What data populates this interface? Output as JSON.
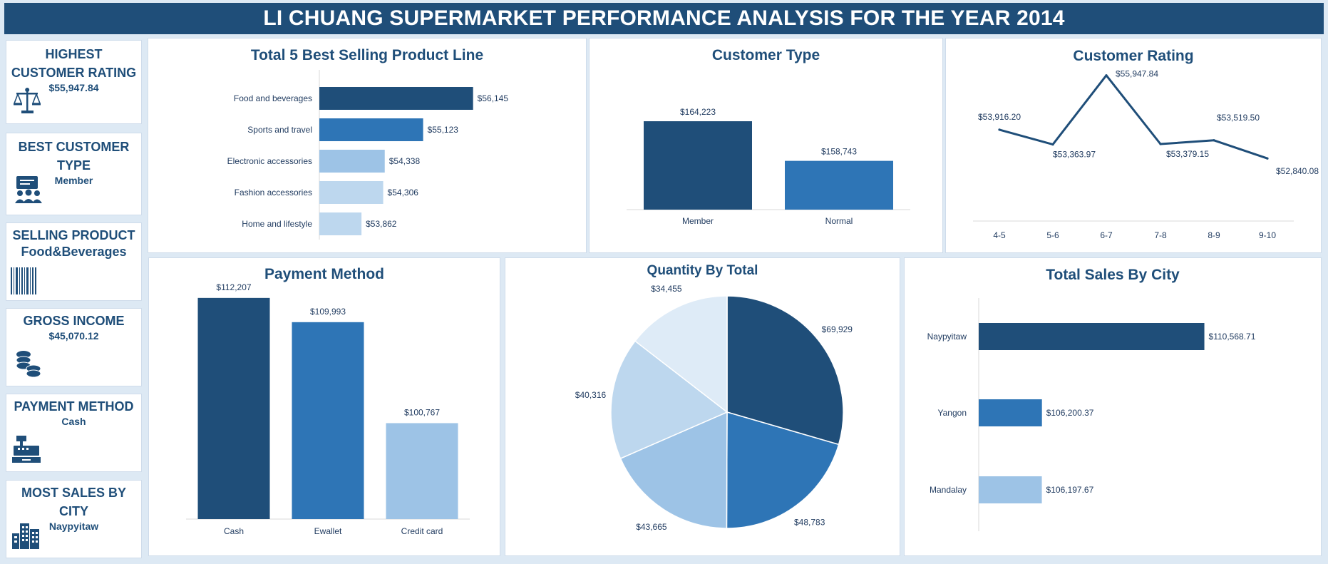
{
  "header": {
    "title": "LI CHUANG SUPERMARKET PERFORMANCE ANALYSIS FOR THE YEAR 2014"
  },
  "kpis": [
    {
      "title": "HIGHEST CUSTOMER RATING",
      "value": "$55,947.84",
      "icon": "scale-icon"
    },
    {
      "title": "BEST CUSTOMER TYPE",
      "value": "Member",
      "icon": "customers-icon"
    },
    {
      "title": "SELLING PRODUCT",
      "value": "Food&Beverages",
      "icon": "barcode-icon"
    },
    {
      "title": "GROSS INCOME",
      "value": "$45,070.12",
      "icon": "coins-icon"
    },
    {
      "title": "PAYMENT METHOD",
      "value": "Cash",
      "icon": "cash-register-icon"
    },
    {
      "title": "MOST SALES BY CITY",
      "value": "Naypyitaw",
      "icon": "city-icon"
    }
  ],
  "colors": {
    "dark": "#1f4e79",
    "medium": "#2e75b6",
    "light": "#9dc3e6",
    "lighter": "#bdd7ee",
    "lightest": "#deebf7"
  },
  "chart_data": [
    {
      "type": "bar",
      "orientation": "horizontal",
      "title": "Total 5 Best Selling Product Line",
      "categories": [
        "Food and beverages",
        "Sports and travel",
        "Electronic accessories",
        "Fashion accessories",
        "Home and lifestyle"
      ],
      "values": [
        56145,
        55123,
        54338,
        54306,
        53862
      ],
      "labels": [
        "$56,145",
        "$55,123",
        "$54,338",
        "$54,306",
        "$53,862"
      ],
      "xlim": [
        53000,
        56500
      ]
    },
    {
      "type": "bar",
      "title": "Customer Type",
      "categories": [
        "Member",
        "Normal"
      ],
      "values": [
        164223,
        158743
      ],
      "labels": [
        "$164,223",
        "$158,743"
      ],
      "ylim": [
        152000,
        166000
      ]
    },
    {
      "type": "line",
      "title": "Customer Rating",
      "categories": [
        "4-5",
        "5-6",
        "6-7",
        "7-8",
        "8-9",
        "9-10"
      ],
      "values": [
        53916.2,
        53363.97,
        55947.84,
        53379.15,
        53519.5,
        52840.08
      ],
      "labels": [
        "$53,916.20",
        "$53,363.97",
        "$55,947.84",
        "$53,379.15",
        "$53,519.50",
        "$52,840.08"
      ],
      "ylim": [
        50500,
        56100
      ]
    },
    {
      "type": "bar",
      "title": "Payment Method",
      "categories": [
        "Cash",
        "Ewallet",
        "Credit card"
      ],
      "values": [
        112207,
        109993,
        100767
      ],
      "labels": [
        "$112,207",
        "$109,993",
        "$100,767"
      ],
      "ylim": [
        92000,
        113500
      ]
    },
    {
      "type": "pie",
      "title": "Quantity By Total",
      "values": [
        69929,
        48783,
        43665,
        40316,
        34455
      ],
      "labels": [
        "$69,929",
        "$48,783",
        "$43,665",
        "$40,316",
        "$34,455"
      ]
    },
    {
      "type": "bar",
      "orientation": "horizontal",
      "title": "Total Sales By City",
      "categories": [
        "Naypyitaw",
        "Yangon",
        "Mandalay"
      ],
      "values": [
        110568.71,
        106200.37,
        106197.67
      ],
      "labels": [
        "$110,568.71",
        "$106,200.37",
        "$106,197.67"
      ],
      "xlim": [
        104500,
        110750
      ]
    }
  ]
}
